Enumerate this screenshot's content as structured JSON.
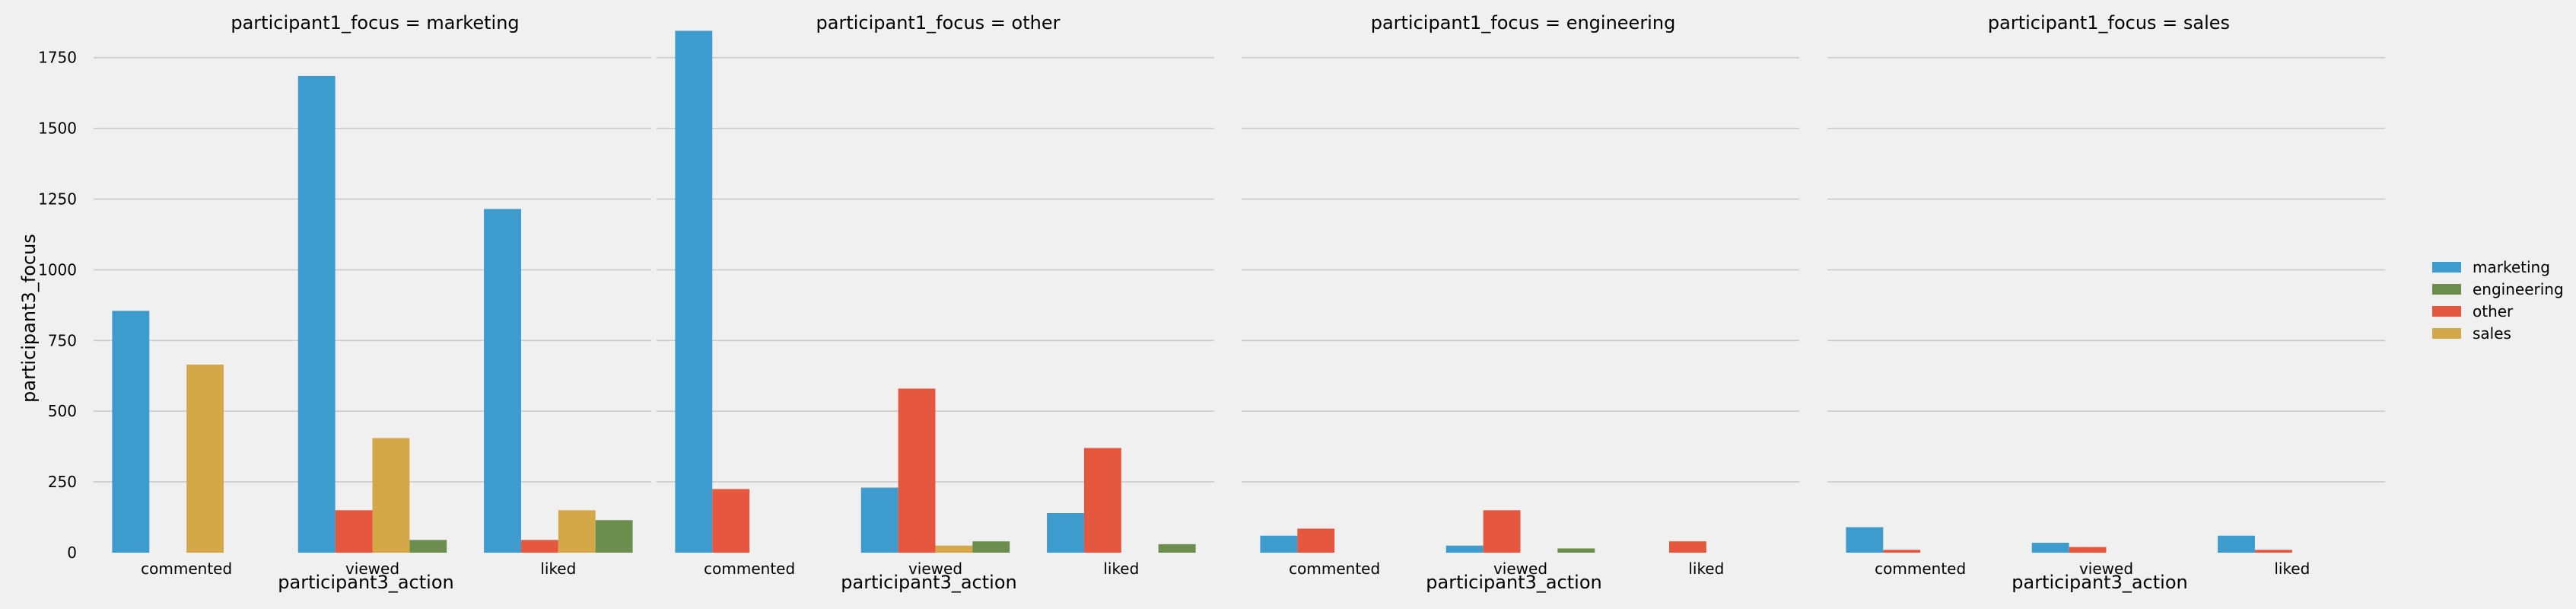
{
  "figure": {
    "ylabel": "participant3_focus",
    "xlabel": "participant3_action"
  },
  "chart_data": [
    {
      "type": "bar",
      "title": "participant1_focus = marketing",
      "xlabel": "participant3_action",
      "ylabel": "participant3_focus",
      "categories": [
        "commented",
        "viewed",
        "liked"
      ],
      "ylim": [
        0,
        1900
      ],
      "yticks": [
        0,
        250,
        500,
        750,
        1000,
        1250,
        1500,
        1750
      ],
      "grid": true,
      "series": [
        {
          "name": "marketing",
          "values": [
            855,
            1685,
            1215
          ]
        },
        {
          "name": "other",
          "values": [
            0,
            150,
            45
          ]
        },
        {
          "name": "sales",
          "values": [
            665,
            405,
            150
          ]
        },
        {
          "name": "engineering",
          "values": [
            0,
            45,
            115
          ]
        }
      ]
    },
    {
      "type": "bar",
      "title": "participant1_focus = other",
      "xlabel": "participant3_action",
      "ylabel": "participant3_focus",
      "categories": [
        "commented",
        "viewed",
        "liked"
      ],
      "ylim": [
        0,
        1900
      ],
      "grid": true,
      "series": [
        {
          "name": "marketing",
          "values": [
            1845,
            230,
            140
          ]
        },
        {
          "name": "other",
          "values": [
            225,
            580,
            370
          ]
        },
        {
          "name": "sales",
          "values": [
            0,
            25,
            0
          ]
        },
        {
          "name": "engineering",
          "values": [
            0,
            40,
            30
          ]
        }
      ]
    },
    {
      "type": "bar",
      "title": "participant1_focus = engineering",
      "xlabel": "participant3_action",
      "ylabel": "participant3_focus",
      "categories": [
        "commented",
        "viewed",
        "liked"
      ],
      "ylim": [
        0,
        1900
      ],
      "grid": true,
      "series": [
        {
          "name": "marketing",
          "values": [
            60,
            25,
            0
          ]
        },
        {
          "name": "other",
          "values": [
            85,
            150,
            40
          ]
        },
        {
          "name": "sales",
          "values": [
            0,
            0,
            0
          ]
        },
        {
          "name": "engineering",
          "values": [
            0,
            15,
            0
          ]
        }
      ]
    },
    {
      "type": "bar",
      "title": "participant1_focus = sales",
      "xlabel": "participant3_action",
      "ylabel": "participant3_focus",
      "categories": [
        "commented",
        "viewed",
        "liked"
      ],
      "ylim": [
        0,
        1900
      ],
      "grid": true,
      "series": [
        {
          "name": "marketing",
          "values": [
            90,
            35,
            60
          ]
        },
        {
          "name": "other",
          "values": [
            10,
            20,
            10
          ]
        },
        {
          "name": "sales",
          "values": [
            0,
            0,
            0
          ]
        },
        {
          "name": "engineering",
          "values": [
            0,
            0,
            0
          ]
        }
      ]
    }
  ],
  "legend": {
    "placement": "right",
    "items": [
      {
        "label": "marketing",
        "color": "#3e9bcd"
      },
      {
        "label": "engineering",
        "color": "#6b8e4e"
      },
      {
        "label": "other",
        "color": "#e5583f"
      },
      {
        "label": "sales",
        "color": "#d4a748"
      }
    ]
  },
  "colors": {
    "marketing": "#3e9bcd",
    "other": "#e5583f",
    "sales": "#d4a748",
    "engineering": "#6b8e4e",
    "background": "#f0f0f0",
    "grid": "#cbcbcb"
  }
}
